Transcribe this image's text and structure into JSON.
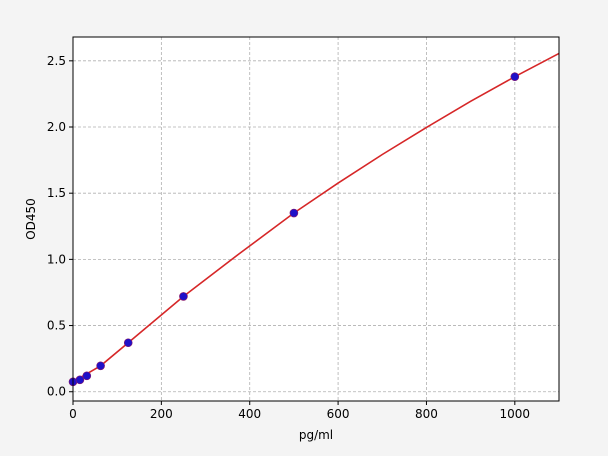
{
  "chart_data": {
    "type": "scatter",
    "title": "",
    "xlabel": "pg/ml",
    "ylabel": "OD450",
    "xlim": [
      0,
      1100
    ],
    "ylim": [
      -0.07,
      2.68
    ],
    "xticks": [
      0,
      200,
      400,
      600,
      800,
      1000
    ],
    "yticks": [
      0.0,
      0.5,
      1.0,
      1.5,
      2.0,
      2.5
    ],
    "xtick_labels": [
      "0",
      "200",
      "400",
      "600",
      "800",
      "1000"
    ],
    "ytick_labels": [
      "0.0",
      "0.5",
      "1.0",
      "1.5",
      "2.0",
      "2.5"
    ],
    "grid": true,
    "points": {
      "x": [
        0,
        15.6,
        31.25,
        62.5,
        125,
        250,
        500,
        1000
      ],
      "y": [
        0.075,
        0.09,
        0.12,
        0.196,
        0.37,
        0.72,
        1.35,
        2.38
      ],
      "color": "#1f10c8"
    },
    "fit_curve": {
      "x": [
        0,
        62.5,
        125,
        250,
        375,
        500,
        600,
        700,
        800,
        900,
        1000,
        1100
      ],
      "y": [
        0.075,
        0.196,
        0.37,
        0.72,
        1.04,
        1.35,
        1.576,
        1.792,
        1.997,
        2.194,
        2.38,
        2.556
      ],
      "color": "#d62728"
    }
  }
}
